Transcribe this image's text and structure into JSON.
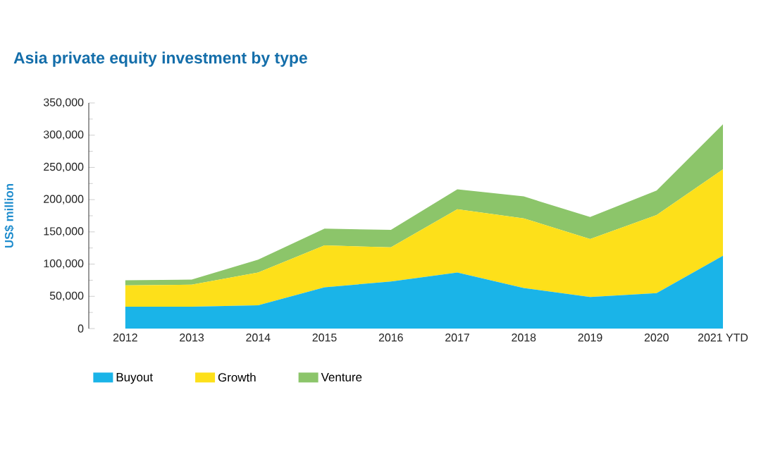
{
  "chart_data": {
    "type": "area",
    "stacked": true,
    "title": "Asia private equity investment by type",
    "ylabel": "US$ million",
    "categories": [
      "2012",
      "2013",
      "2014",
      "2015",
      "2016",
      "2017",
      "2018",
      "2019",
      "2020",
      "2021 YTD"
    ],
    "series": [
      {
        "name": "Buyout",
        "color": "#1ab4e8",
        "values": [
          34000,
          34000,
          36000,
          64000,
          73000,
          87000,
          63000,
          49000,
          55000,
          113000
        ]
      },
      {
        "name": "Growth",
        "color": "#fde01a",
        "values": [
          33000,
          34000,
          51000,
          65000,
          53000,
          98000,
          108000,
          90000,
          121000,
          134000
        ]
      },
      {
        "name": "Venture",
        "color": "#8cc56a",
        "values": [
          8000,
          8000,
          20000,
          26000,
          27000,
          31000,
          34000,
          34000,
          38000,
          70000
        ]
      }
    ],
    "ylim": [
      0,
      350000
    ],
    "yticks": [
      0,
      {
        "value": 50000,
        "label": "50,000"
      },
      {
        "value": 100000,
        "label": "100,000"
      },
      {
        "value": 150000,
        "label": "150,000"
      },
      {
        "value": 200000,
        "label": "200,000"
      },
      {
        "value": 250000,
        "label": "250,000"
      },
      {
        "value": 300000,
        "label": "300,000"
      },
      {
        "value": 350000,
        "label": "350,000"
      }
    ],
    "legend": "bottom left",
    "grid": false
  }
}
